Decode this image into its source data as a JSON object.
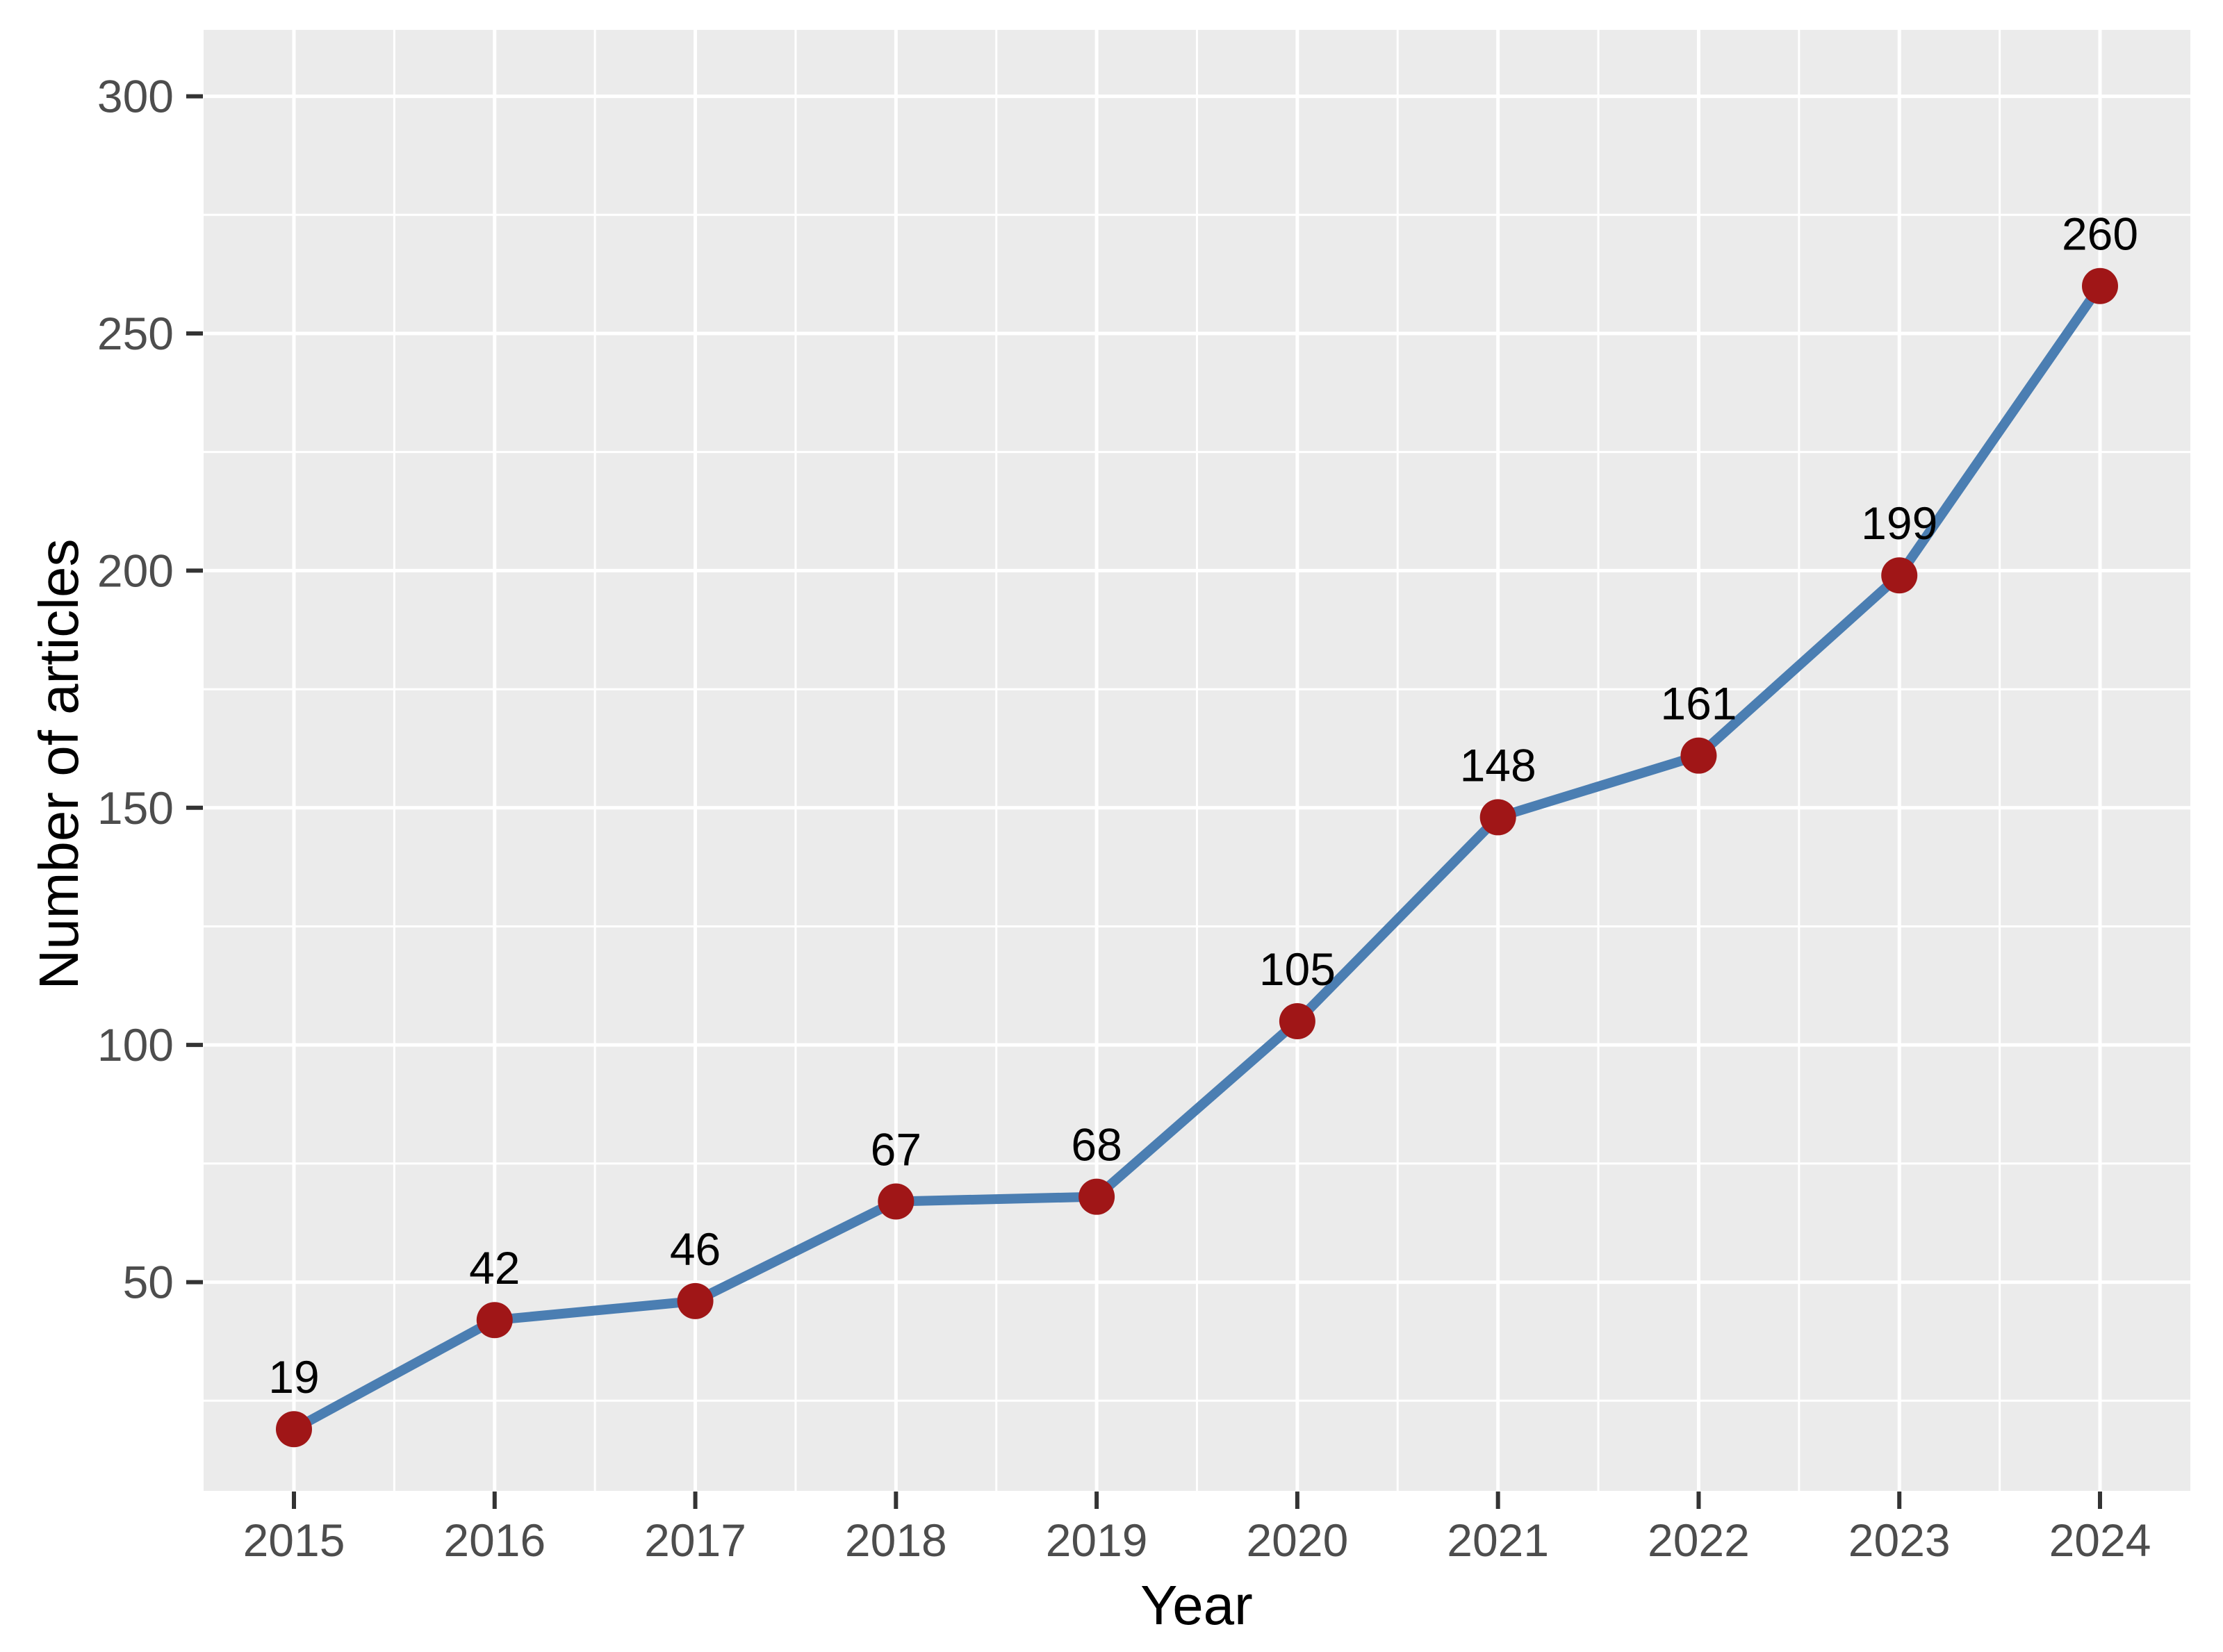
{
  "chart_data": {
    "type": "line",
    "title": "",
    "xlabel": "Year",
    "ylabel": "Number of articles",
    "categories": [
      "2015",
      "2016",
      "2017",
      "2018",
      "2019",
      "2020",
      "2021",
      "2022",
      "2023",
      "2024"
    ],
    "x": [
      2015,
      2016,
      2017,
      2018,
      2019,
      2020,
      2021,
      2022,
      2023,
      2024
    ],
    "series": [
      {
        "name": "Number of articles",
        "values": [
          19,
          42,
          46,
          67,
          68,
          105,
          148,
          161,
          199,
          260
        ]
      }
    ],
    "point_labels": [
      "19",
      "42",
      "46",
      "67",
      "68",
      "105",
      "148",
      "161",
      "199",
      "260"
    ],
    "y_ticks": [
      50,
      100,
      150,
      200,
      250,
      300
    ],
    "ylim": [
      6,
      314
    ],
    "grid": {
      "major": true,
      "minor": true,
      "style": "white gridlines on gray panel"
    },
    "legend_position": "none",
    "colors": {
      "line": "#4B7EB2",
      "point": "#A01617",
      "panel_background": "#EBEBEB",
      "gridline": "#FFFFFF",
      "tick_label": "#4D4D4D",
      "tick_mark": "#333333",
      "axis_title": "#000000",
      "point_label": "#000000",
      "figure_background": "#FFFFFF"
    }
  }
}
